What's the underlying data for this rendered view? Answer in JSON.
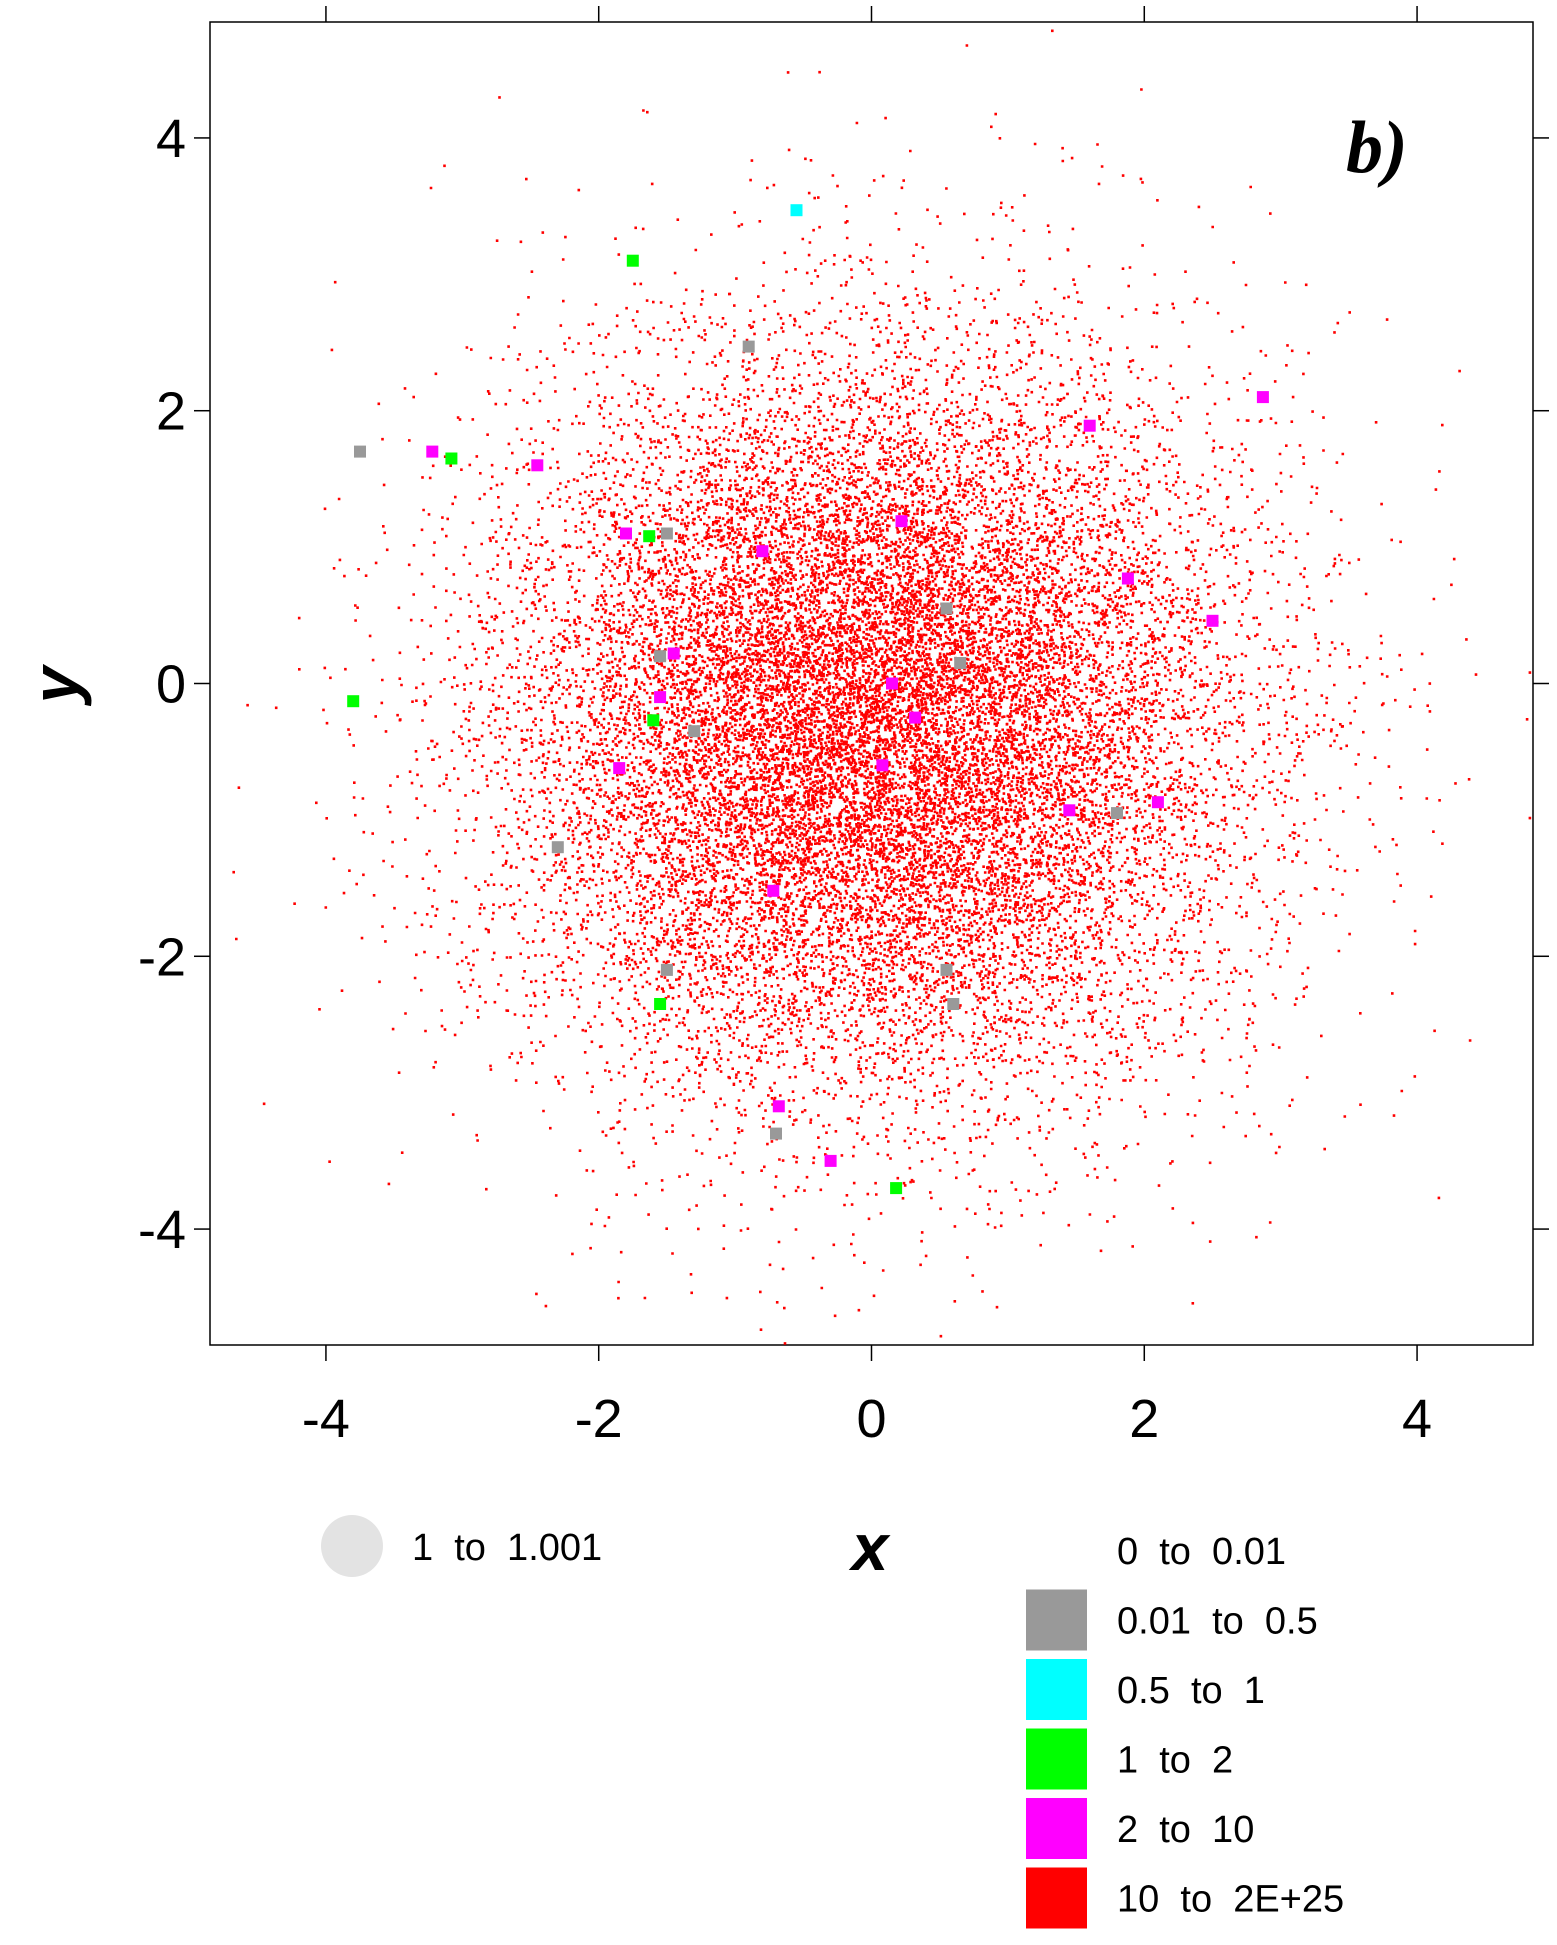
{
  "chart_data": {
    "type": "scatter",
    "panel_label": "b)",
    "xlabel": "x",
    "ylabel": "y",
    "xlim": [
      -4.85,
      4.85
    ],
    "ylim": [
      -4.85,
      4.85
    ],
    "x_ticks": [
      -4,
      -2,
      0,
      2,
      4
    ],
    "y_ticks": [
      -4,
      -2,
      0,
      2,
      4
    ],
    "x_tick_labels": [
      "-4",
      "-2",
      "0",
      "2",
      "4"
    ],
    "y_tick_labels": [
      "-4",
      "-2",
      "0",
      "2",
      "4"
    ],
    "grid": false,
    "legend_placement": "bottom",
    "background_cloud": {
      "legend_label": "10  to  2E+25",
      "color": "#ff0000",
      "distribution": "2D Gaussian cloud centered near (0, -0.3), sigma about 1.3",
      "approx_count": 22000
    },
    "size_legend": {
      "label": "1  to  1.001",
      "color": "#e3e3e3"
    },
    "series": [
      {
        "label": "0  to  0.01",
        "color": "#ffffff",
        "points": []
      },
      {
        "label": "0.01  to  0.5",
        "color": "#999999",
        "points": [
          [
            -3.75,
            1.7
          ],
          [
            -0.9,
            2.47
          ],
          [
            -1.5,
            1.1
          ],
          [
            0.55,
            0.55
          ],
          [
            0.65,
            0.15
          ],
          [
            -1.55,
            0.2
          ],
          [
            -1.3,
            -0.35
          ],
          [
            -2.3,
            -1.2
          ],
          [
            -1.5,
            -2.1
          ],
          [
            0.55,
            -2.1
          ],
          [
            0.6,
            -2.35
          ],
          [
            -0.7,
            -3.3
          ],
          [
            1.8,
            -0.95
          ]
        ]
      },
      {
        "label": "0.5  to  1",
        "color": "#00ffff",
        "points": [
          [
            -0.55,
            3.47
          ]
        ]
      },
      {
        "label": "1  to  2",
        "color": "#00ff00",
        "points": [
          [
            -1.75,
            3.1
          ],
          [
            -3.08,
            1.65
          ],
          [
            -1.63,
            1.08
          ],
          [
            -3.8,
            -0.13
          ],
          [
            -1.6,
            -0.27
          ],
          [
            -1.55,
            -2.35
          ],
          [
            0.18,
            -3.7
          ]
        ]
      },
      {
        "label": "2  to  10",
        "color": "#ff00ff",
        "points": [
          [
            -3.22,
            1.7
          ],
          [
            -2.45,
            1.6
          ],
          [
            2.87,
            2.1
          ],
          [
            1.6,
            1.89
          ],
          [
            -1.8,
            1.1
          ],
          [
            0.22,
            1.19
          ],
          [
            -0.8,
            0.97
          ],
          [
            1.88,
            0.77
          ],
          [
            2.5,
            0.46
          ],
          [
            -1.45,
            0.22
          ],
          [
            0.15,
            0.0
          ],
          [
            -1.55,
            -0.1
          ],
          [
            0.32,
            -0.25
          ],
          [
            -1.85,
            -0.62
          ],
          [
            0.08,
            -0.6
          ],
          [
            1.45,
            -0.93
          ],
          [
            2.1,
            -0.87
          ],
          [
            -0.72,
            -1.52
          ],
          [
            -0.68,
            -3.1
          ],
          [
            -0.3,
            -3.5
          ]
        ]
      }
    ]
  }
}
